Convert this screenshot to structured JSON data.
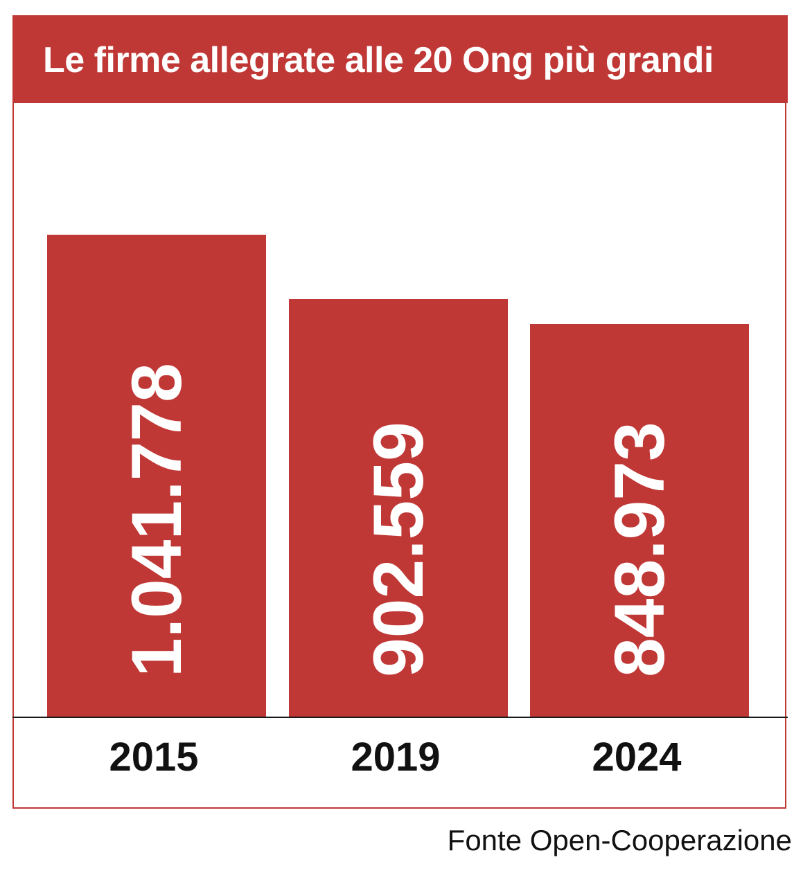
{
  "chart_data": {
    "type": "bar",
    "title": "Le firme allegrate alle 20 Ong più grandi",
    "categories": [
      "2015",
      "2019",
      "2024"
    ],
    "values": [
      1041778,
      902559,
      848973
    ],
    "value_labels": [
      "1.041.778",
      "902.559",
      "848.973"
    ],
    "xlabel": "",
    "ylabel": "",
    "ylim": [
      0,
      1340000
    ],
    "grid": false,
    "legend": "none",
    "source": "Fonte Open-Cooperazione"
  },
  "colors": {
    "bar": "#c03836",
    "header": "#c03836",
    "text_dark": "#111111",
    "text_light": "#ffffff"
  }
}
